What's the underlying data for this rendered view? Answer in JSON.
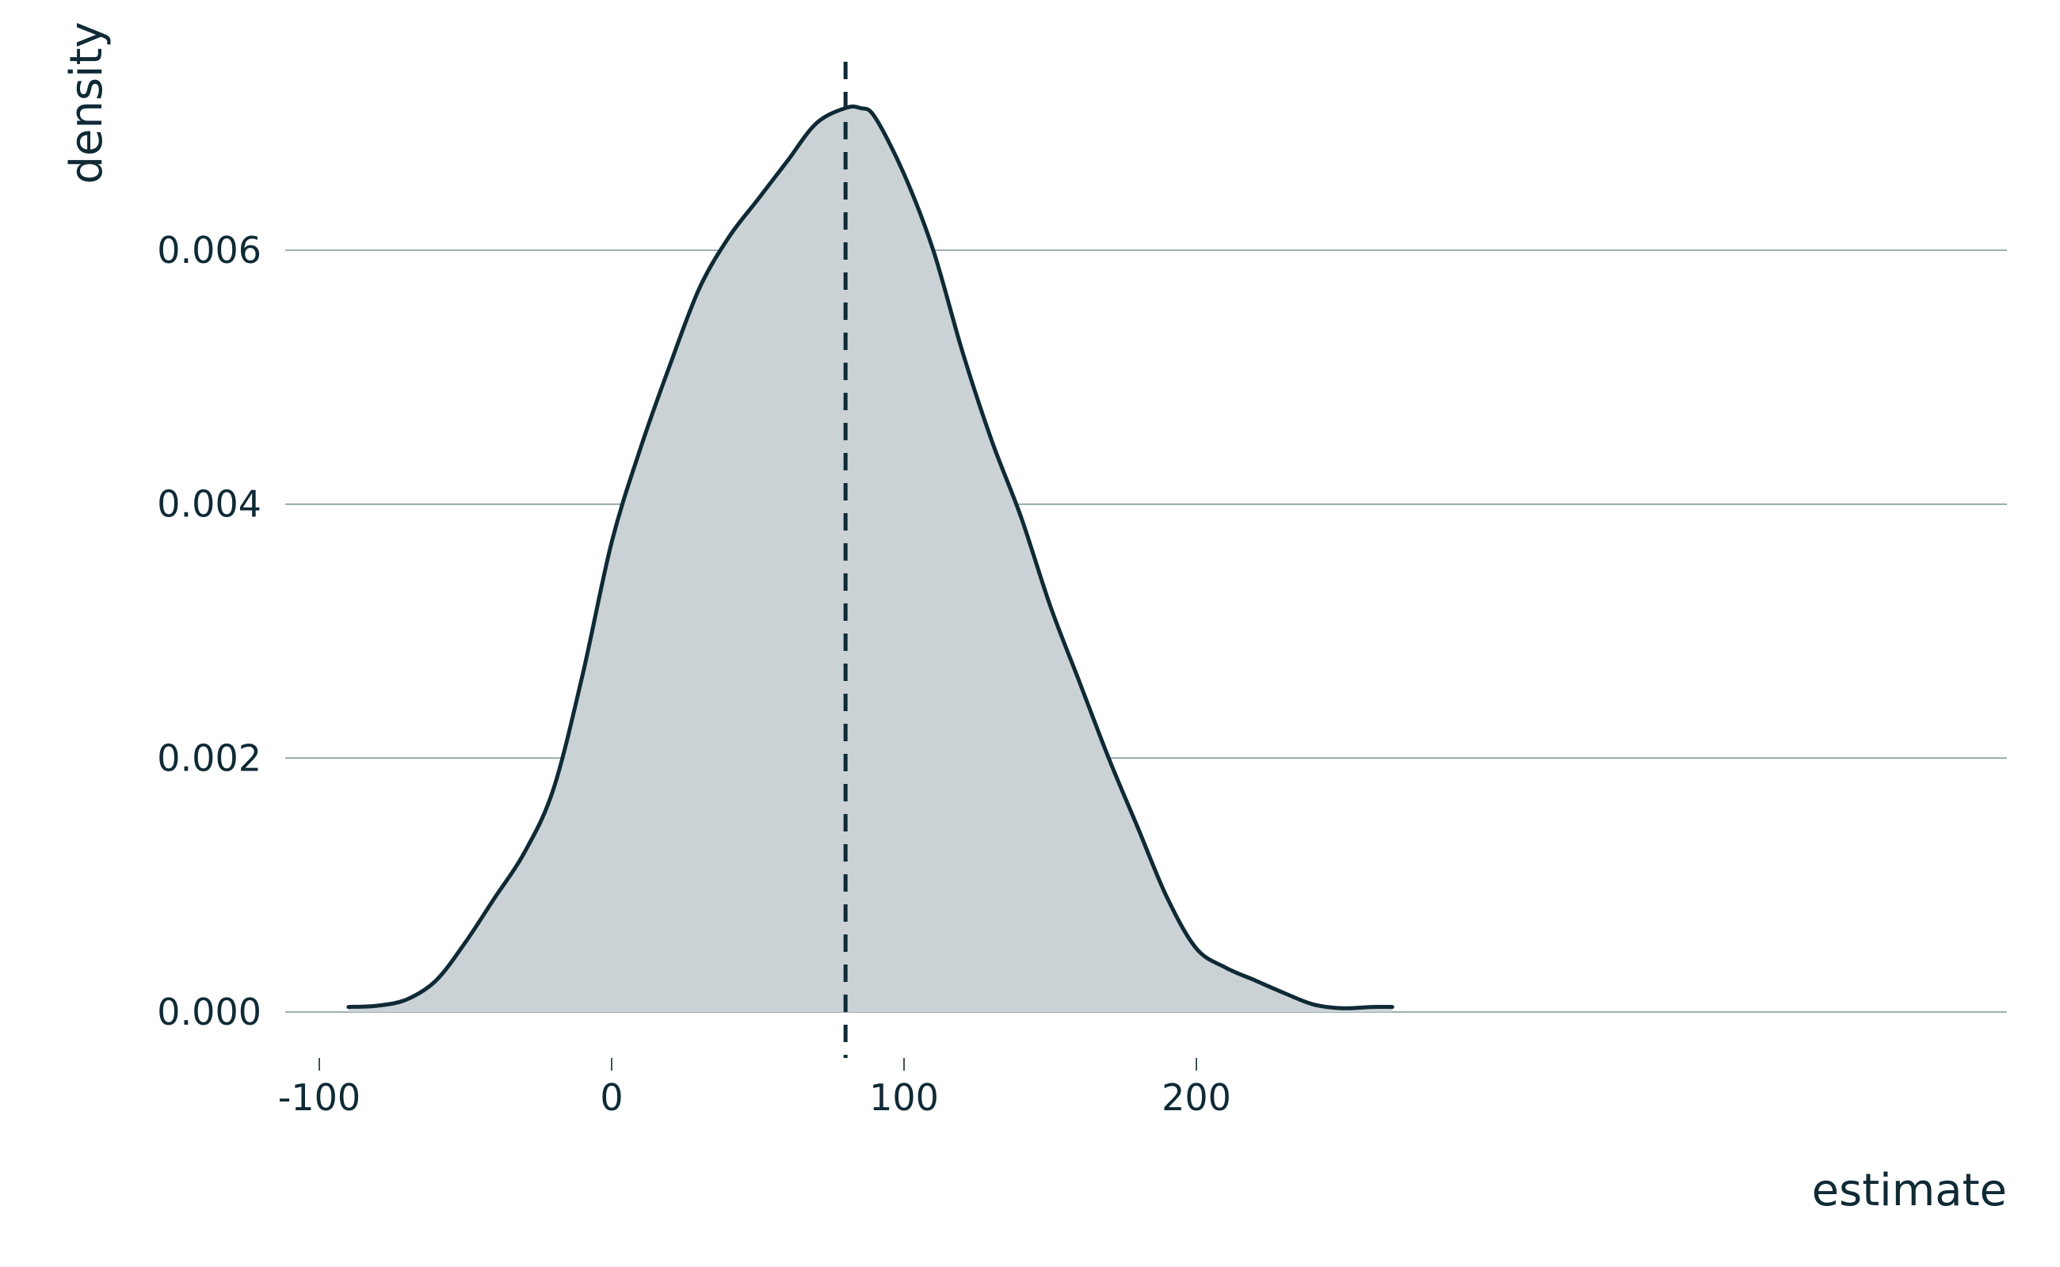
{
  "chart_data": {
    "type": "area",
    "title": "",
    "xlabel": "estimate",
    "ylabel": "density",
    "xlim": [
      -100,
      285
    ],
    "ylim": [
      0,
      0.0074
    ],
    "x_ticks": [
      -100,
      0,
      100,
      200
    ],
    "x_tick_labels": [
      "-100",
      "0",
      "100",
      "200"
    ],
    "y_ticks": [
      0,
      0.002,
      0.004,
      0.006
    ],
    "y_tick_labels": [
      "0.000",
      "0.002",
      "0.004",
      "0.006"
    ],
    "grid": "horizontal",
    "legend": "none",
    "reference_line": {
      "type": "vertical",
      "style": "dashed",
      "x": 80
    },
    "series": [
      {
        "x": [
          -90,
          -80,
          -70,
          -60,
          -50,
          -40,
          -30,
          -20,
          -10,
          0,
          10,
          20,
          30,
          40,
          50,
          60,
          70,
          80,
          85,
          90,
          100,
          110,
          120,
          130,
          140,
          150,
          160,
          170,
          180,
          190,
          200,
          210,
          220,
          230,
          240,
          250,
          260,
          267
        ],
        "y": [
          4e-05,
          5e-05,
          0.0001,
          0.00025,
          0.00055,
          0.0009,
          0.00125,
          0.00175,
          0.00265,
          0.0037,
          0.00445,
          0.0051,
          0.0057,
          0.0061,
          0.0064,
          0.0067,
          0.007,
          0.00712,
          0.00712,
          0.00705,
          0.0066,
          0.006,
          0.0052,
          0.0045,
          0.0039,
          0.0032,
          0.0026,
          0.002,
          0.00145,
          0.0009,
          0.0005,
          0.00035,
          0.00025,
          0.00015,
          6e-05,
          3e-05,
          4e-05,
          4e-05
        ]
      }
    ]
  },
  "colors": {
    "line": "#0f2a35",
    "fill": "#cbd2d5",
    "grid": "#7f9597",
    "text": "#0f2a35"
  }
}
